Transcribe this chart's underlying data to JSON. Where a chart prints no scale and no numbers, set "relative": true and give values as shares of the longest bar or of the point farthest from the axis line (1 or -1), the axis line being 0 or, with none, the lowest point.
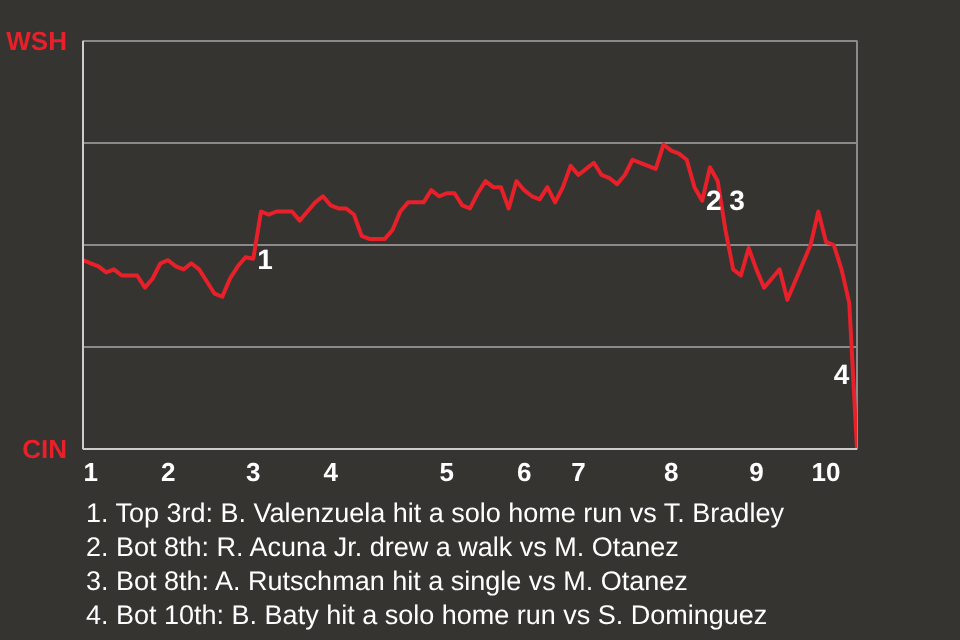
{
  "chart_data": {
    "type": "line",
    "relative": true,
    "categories": [
      null,
      "1",
      null,
      null,
      null,
      null,
      null,
      null,
      null,
      null,
      null,
      "2",
      null,
      null,
      null,
      null,
      null,
      null,
      null,
      null,
      null,
      null,
      "3",
      null,
      null,
      null,
      null,
      null,
      null,
      null,
      null,
      null,
      "4",
      null,
      null,
      null,
      null,
      null,
      null,
      null,
      null,
      null,
      null,
      null,
      null,
      null,
      null,
      "5",
      null,
      null,
      null,
      null,
      null,
      null,
      null,
      null,
      null,
      "6",
      null,
      null,
      null,
      null,
      null,
      null,
      "7",
      null,
      null,
      null,
      null,
      null,
      null,
      null,
      null,
      null,
      null,
      null,
      "8",
      null,
      null,
      null,
      null,
      null,
      null,
      null,
      null,
      null,
      null,
      "9",
      null,
      null,
      null,
      null,
      null,
      null,
      null,
      null,
      "10",
      null,
      null,
      null,
      null
    ],
    "series": [
      {
        "color": "#e8202a",
        "values": [
          0.62,
          0.61,
          0.6,
          0.58,
          0.59,
          0.57,
          0.57,
          0.57,
          0.53,
          0.56,
          0.61,
          0.62,
          0.6,
          0.59,
          0.61,
          0.59,
          0.55,
          0.51,
          0.5,
          0.56,
          0.6,
          0.63,
          0.625,
          0.78,
          0.77,
          0.78,
          0.78,
          0.78,
          0.75,
          0.78,
          0.81,
          0.83,
          0.8,
          0.79,
          0.79,
          0.77,
          0.7,
          0.69,
          0.69,
          0.69,
          0.72,
          0.78,
          0.81,
          0.81,
          0.81,
          0.85,
          0.83,
          0.84,
          0.84,
          0.8,
          0.79,
          0.84,
          0.88,
          0.86,
          0.86,
          0.79,
          0.88,
          0.85,
          0.83,
          0.82,
          0.86,
          0.81,
          0.86,
          0.93,
          0.9,
          0.92,
          0.94,
          0.9,
          0.89,
          0.87,
          0.9,
          0.95,
          0.94,
          0.93,
          0.92,
          1.0,
          0.98,
          0.97,
          0.95,
          0.86,
          0.815,
          0.925,
          0.88,
          0.72,
          0.59,
          0.57,
          0.66,
          0.59,
          0.53,
          0.56,
          0.59,
          0.49,
          0.55,
          0.61,
          0.67,
          0.78,
          0.68,
          0.67,
          0.59,
          0.48,
          0.0
        ]
      }
    ],
    "ref_lines": [
      {
        "axis": "y",
        "value": 0.335,
        "color": "#8a8a8a"
      },
      {
        "axis": "y",
        "value": 0.67,
        "color": "#8a8a8a"
      },
      {
        "axis": "y",
        "value": 1.005,
        "color": "#8a8a8a"
      }
    ],
    "marker": "none",
    "line_style": "solid",
    "annotations": [
      "WSH",
      "CIN",
      "1",
      "2",
      "3",
      "4",
      "1. Top 3rd: B. Valenzuela hit a solo home run vs T. Bradley",
      "2. Bot 8th: R. Acuna Jr. drew a walk vs M. Otanez",
      "3. Bot 8th: A. Rutschman hit a single vs M. Otanez",
      "4. Bot 10th: B. Baty hit a solo home run vs S. Dominguez"
    ]
  }
}
